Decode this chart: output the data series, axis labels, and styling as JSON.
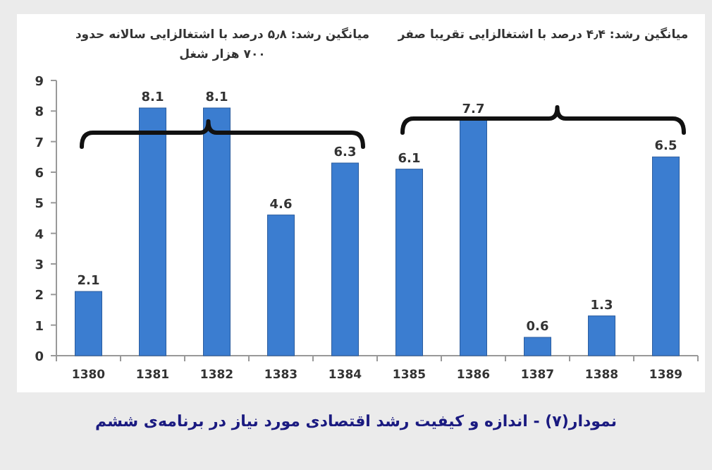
{
  "chart_data": {
    "type": "bar",
    "title": "نمودار(۷) - اندازه و کیفیت رشد اقتصادی مورد نیاز در برنامه‌ی ششم",
    "categories": [
      "1380",
      "1381",
      "1382",
      "1383",
      "1384",
      "1385",
      "1386",
      "1387",
      "1388",
      "1389"
    ],
    "values": [
      2.1,
      8.1,
      8.1,
      4.6,
      6.3,
      6.1,
      7.7,
      0.6,
      1.3,
      6.5
    ],
    "color": "#3b7dd0",
    "ylim": [
      0,
      9
    ],
    "yticks": [
      0,
      1,
      2,
      3,
      4,
      5,
      6,
      7,
      8,
      9
    ],
    "data_labels": true,
    "grid": false,
    "annotations": [
      "میانگین رشد: ۵٫۸ درصد با اشتغالزایی سالانه حدود ۷۰۰ هزار شغل",
      "میانگین رشد: ۴٫۴ درصد با اشتغالزایی تقریبا صفر"
    ]
  }
}
